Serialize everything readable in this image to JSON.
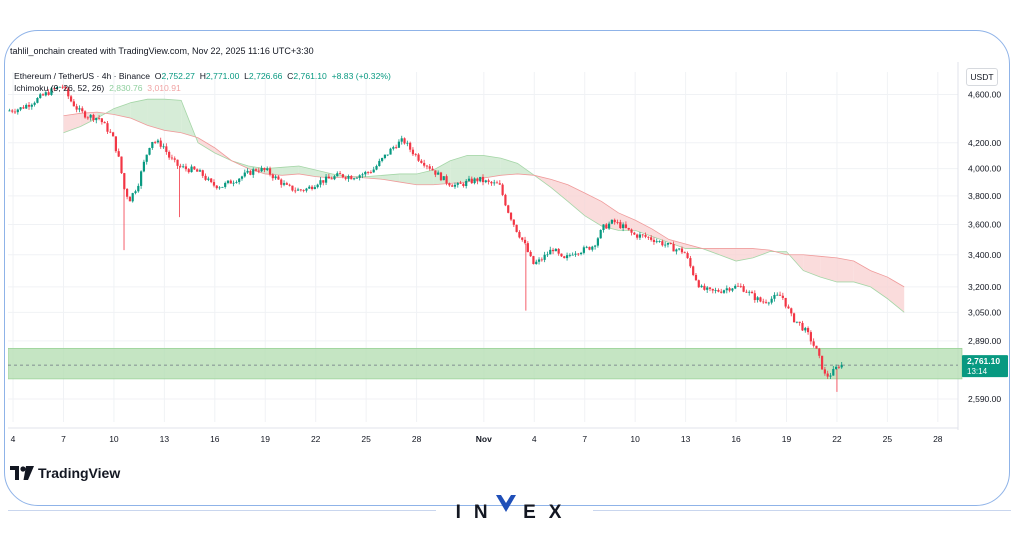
{
  "credit": "tahlil_onchain created with TradingView.com, Nov 22, 2025 11:16 UTC+3:30",
  "legend": {
    "symbol": "Ethereum / TetherUS · 4h · Binance",
    "o_label": "O",
    "o": "2,752.27",
    "h_label": "H",
    "h": "2,771.00",
    "l_label": "L",
    "l": "2,726.66",
    "c_label": "C",
    "c": "2,761.10",
    "change": "+8.83 (+0.32%)",
    "indicator": "Ichimoku (9, 26, 52, 26)",
    "ind_a": "2,830.76",
    "ind_b": "3,010.91"
  },
  "currency": "USDT",
  "logo_text": "TradingView",
  "brand": "INVEX",
  "colors": {
    "up": "#089981",
    "down": "#f23645",
    "cloud_green": "#c8e6c9",
    "cloud_red": "#f8d0d0",
    "zone": "#b7dfb4",
    "frame": "#8fb3e8",
    "brand": "#1f4fb8"
  },
  "chart_data": {
    "type": "candlestick",
    "timeframe": "4h",
    "y_ticks": [
      "4,600.00",
      "4,200.00",
      "4,000.00",
      "3,800.00",
      "3,600.00",
      "3,400.00",
      "3,200.00",
      "3,050.00",
      "2,890.00",
      "2,590.00"
    ],
    "y_tick_values": [
      4600,
      4200,
      4000,
      3800,
      3600,
      3400,
      3200,
      3050,
      2890,
      2590
    ],
    "x_ticks": [
      "4",
      "7",
      "10",
      "13",
      "16",
      "19",
      "22",
      "25",
      "28",
      "Nov",
      "4",
      "7",
      "10",
      "13",
      "16",
      "19",
      "22",
      "25",
      "28"
    ],
    "x_tick_days": [
      4,
      7,
      10,
      13,
      16,
      19,
      22,
      25,
      28,
      32,
      35,
      38,
      41,
      44,
      47,
      50,
      53,
      56,
      59
    ],
    "x_range_days": [
      3.7,
      60.2
    ],
    "ylim": [
      2480,
      4800
    ],
    "log_scale": true,
    "price_path_days": [
      3.7,
      4.5,
      5.3,
      6.2,
      7,
      7.5,
      8,
      8.5,
      9.2,
      10,
      10.4,
      10.7,
      11,
      11.5,
      12,
      12.3,
      13,
      13.4,
      13.9,
      14.3,
      14.8,
      15.3,
      15.9,
      16.5,
      17,
      17.5,
      18,
      18.6,
      19.2,
      19.8,
      20.4,
      21,
      21.6,
      22.2,
      22.8,
      23.5,
      24.2,
      24.9,
      25.5,
      26.1,
      26.8,
      27.3,
      27.7,
      28.2,
      28.8,
      29.3,
      29.9,
      30.5,
      31.1,
      31.8,
      32.4,
      33,
      33.5,
      34,
      34.5,
      35,
      35.4,
      35.8,
      36.2,
      36.8,
      37.4,
      38,
      38.6,
      39.2,
      39.8,
      40.4,
      41,
      41.6,
      42.2,
      42.8,
      43.4,
      44,
      44.5,
      45,
      45.6,
      46.2,
      46.8,
      47.4,
      48,
      48.6,
      49.2,
      49.8,
      50.4,
      50.9,
      51.4,
      51.9,
      52.4,
      52.8,
      53.2
    ],
    "price_path": [
      4460,
      4480,
      4540,
      4620,
      4680,
      4550,
      4460,
      4420,
      4400,
      4250,
      4060,
      3850,
      3770,
      3880,
      4100,
      4220,
      4180,
      4080,
      4020,
      4000,
      3990,
      3960,
      3880,
      3870,
      3900,
      3930,
      3960,
      4000,
      3980,
      3920,
      3860,
      3840,
      3850,
      3900,
      3920,
      3950,
      3940,
      3960,
      3990,
      4080,
      4180,
      4220,
      4150,
      4080,
      4020,
      3960,
      3900,
      3870,
      3900,
      3920,
      3890,
      3880,
      3700,
      3570,
      3470,
      3340,
      3360,
      3400,
      3440,
      3360,
      3420,
      3430,
      3460,
      3580,
      3620,
      3580,
      3530,
      3520,
      3500,
      3470,
      3440,
      3420,
      3290,
      3190,
      3170,
      3180,
      3200,
      3200,
      3150,
      3110,
      3130,
      3150,
      3020,
      2980,
      2920,
      2830,
      2700,
      2720,
      2761
    ],
    "last_price": "2,761.10",
    "last_price_value": 2761.1,
    "countdown": "13:14",
    "support_zone": [
      2690,
      2850
    ],
    "cloud_days": [
      7,
      8,
      9,
      10,
      11,
      12,
      13,
      14,
      15,
      16,
      17,
      18,
      19,
      20,
      21,
      22,
      23,
      24,
      25,
      26,
      27,
      28,
      29,
      30,
      31,
      32,
      33,
      34,
      35,
      36,
      37,
      38,
      39,
      40,
      41,
      42,
      43,
      44,
      45,
      46,
      47,
      48,
      49,
      50,
      51,
      52,
      53,
      54,
      55,
      56,
      57
    ],
    "cloud_span_a": [
      4280,
      4330,
      4400,
      4480,
      4530,
      4560,
      4560,
      4550,
      4200,
      4120,
      4060,
      4020,
      4000,
      4010,
      4020,
      3990,
      3960,
      3940,
      3940,
      3950,
      3960,
      3960,
      3990,
      4060,
      4100,
      4100,
      4080,
      4040,
      3950,
      3860,
      3760,
      3660,
      3590,
      3560,
      3560,
      3520,
      3480,
      3440,
      3440,
      3400,
      3360,
      3380,
      3420,
      3420,
      3300,
      3260,
      3230,
      3230,
      3200,
      3130,
      3050
    ],
    "cloud_span_b": [
      4420,
      4440,
      4450,
      4430,
      4400,
      4340,
      4300,
      4280,
      4240,
      4160,
      4060,
      4000,
      3960,
      3950,
      3960,
      3940,
      3930,
      3940,
      3930,
      3920,
      3900,
      3880,
      3880,
      3890,
      3900,
      3930,
      3950,
      3960,
      3950,
      3920,
      3880,
      3820,
      3760,
      3680,
      3630,
      3570,
      3500,
      3470,
      3440,
      3440,
      3440,
      3440,
      3430,
      3400,
      3400,
      3390,
      3380,
      3360,
      3300,
      3260,
      3200
    ]
  }
}
